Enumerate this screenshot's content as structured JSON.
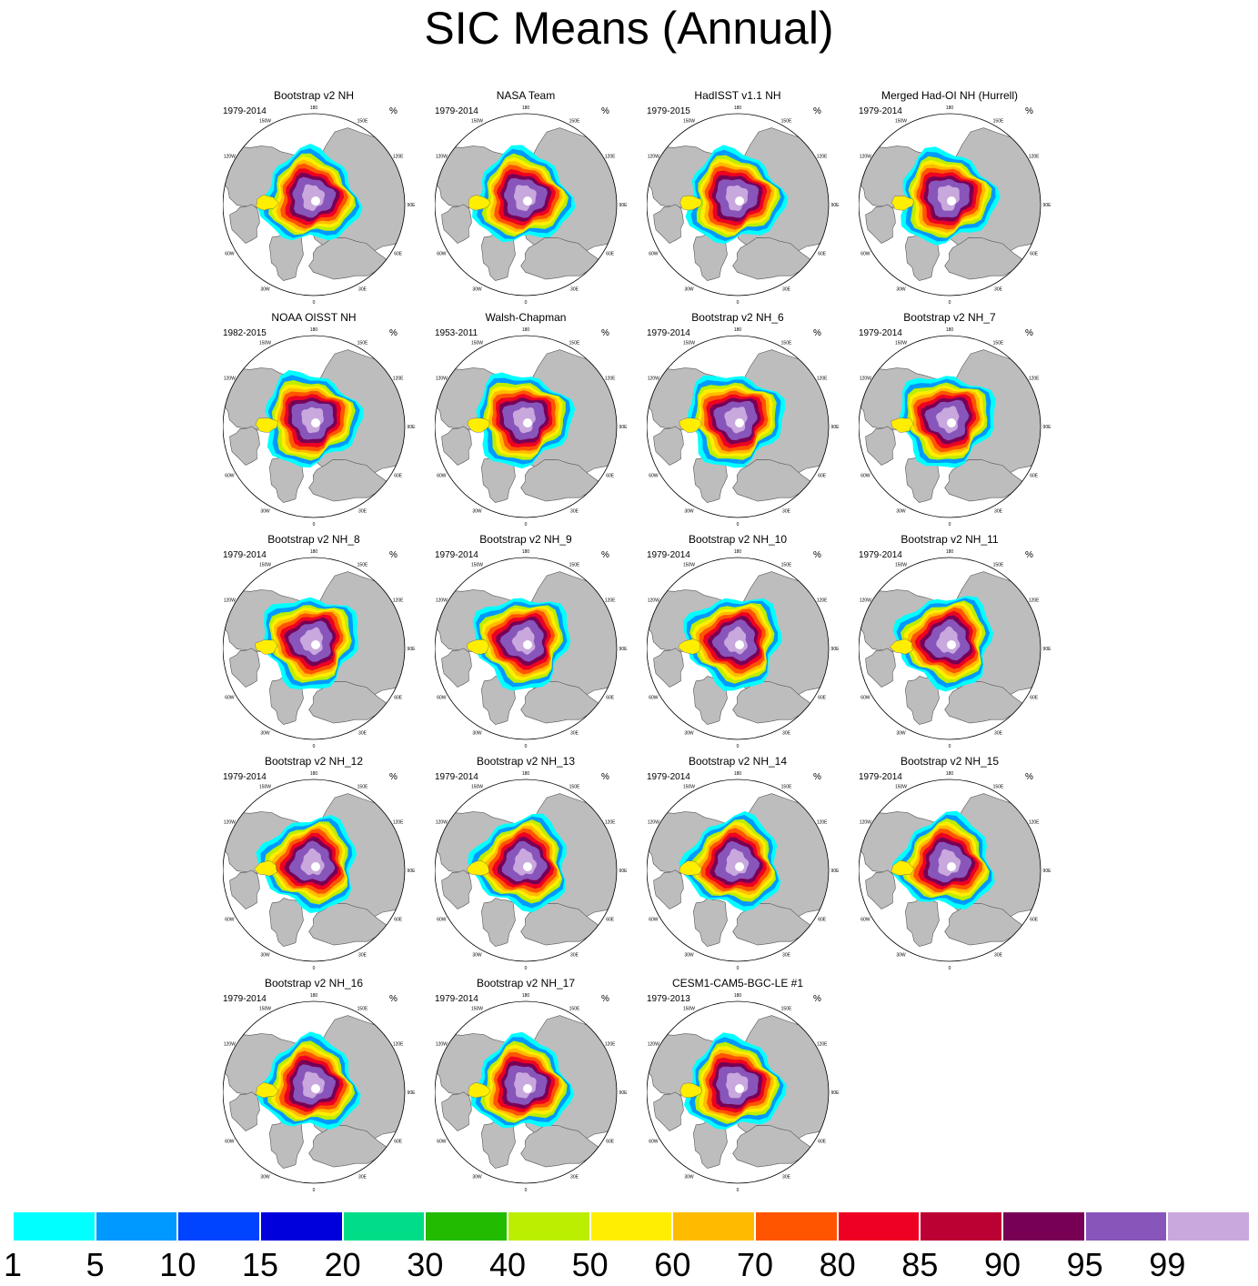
{
  "title": "SIC Means (Annual)",
  "units": "%",
  "longitude_labels": [
    "180",
    "150E",
    "120E",
    "90E",
    "60E",
    "30E",
    "0",
    "30W",
    "60W",
    "90W",
    "120W",
    "150W"
  ],
  "panels": [
    {
      "name": "Bootstrap v2 NH",
      "years": "1979-2014"
    },
    {
      "name": "NASA Team",
      "years": "1979-2014"
    },
    {
      "name": "HadISST v1.1 NH",
      "years": "1979-2015"
    },
    {
      "name": "Merged Had-OI NH (Hurrell)",
      "years": "1979-2014"
    },
    {
      "name": "NOAA OISST NH",
      "years": "1982-2015"
    },
    {
      "name": "Walsh-Chapman",
      "years": "1953-2011"
    },
    {
      "name": "Bootstrap v2 NH_6",
      "years": "1979-2014"
    },
    {
      "name": "Bootstrap v2 NH_7",
      "years": "1979-2014"
    },
    {
      "name": "Bootstrap v2 NH_8",
      "years": "1979-2014"
    },
    {
      "name": "Bootstrap v2 NH_9",
      "years": "1979-2014"
    },
    {
      "name": "Bootstrap v2 NH_10",
      "years": "1979-2014"
    },
    {
      "name": "Bootstrap v2 NH_11",
      "years": "1979-2014"
    },
    {
      "name": "Bootstrap v2 NH_12",
      "years": "1979-2014"
    },
    {
      "name": "Bootstrap v2 NH_13",
      "years": "1979-2014"
    },
    {
      "name": "Bootstrap v2 NH_14",
      "years": "1979-2014"
    },
    {
      "name": "Bootstrap v2 NH_15",
      "years": "1979-2014"
    },
    {
      "name": "Bootstrap v2 NH_16",
      "years": "1979-2014"
    },
    {
      "name": "Bootstrap v2 NH_17",
      "years": "1979-2014"
    },
    {
      "name": "CESM1-CAM5-BGC-LE #1",
      "years": "1979-2013"
    }
  ],
  "colorbar": {
    "labels": [
      "1",
      "5",
      "10",
      "15",
      "20",
      "30",
      "40",
      "50",
      "60",
      "70",
      "80",
      "85",
      "90",
      "95",
      "99"
    ],
    "colors": [
      "#00ffff",
      "#0099ff",
      "#0044ff",
      "#0000dd",
      "#00dd88",
      "#22bb00",
      "#bbee00",
      "#ffee00",
      "#ffbb00",
      "#ff5500",
      "#ee0022",
      "#bb0033",
      "#770055",
      "#8855bb",
      "#c8a8dd"
    ]
  }
}
